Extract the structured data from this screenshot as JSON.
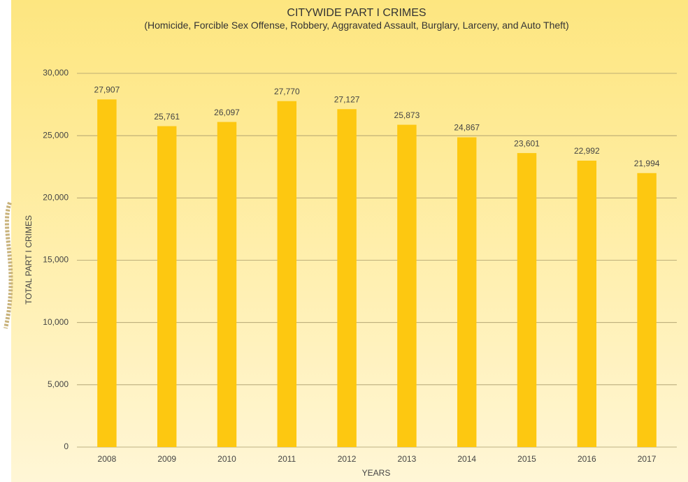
{
  "chart_data": {
    "type": "bar",
    "title": "CITYWIDE PART I CRIMES",
    "subtitle": "(Homicide, Forcible Sex Offense, Robbery, Aggravated Assault, Burglary, Larceny, and Auto Theft)",
    "x_label": "YEARS",
    "y_label": "TOTAL PART I CRIMES",
    "categories": [
      "2008",
      "2009",
      "2010",
      "2011",
      "2012",
      "2013",
      "2014",
      "2015",
      "2016",
      "2017"
    ],
    "values": [
      27907,
      25761,
      26097,
      27770,
      27127,
      25873,
      24867,
      23601,
      22992,
      21994
    ],
    "value_labels": [
      "27,907",
      "25,761",
      "26,097",
      "27,770",
      "27,127",
      "25,873",
      "24,867",
      "23,601",
      "22,992",
      "21,994"
    ],
    "color": "#fdc811",
    "ylim": [
      0,
      30000
    ],
    "yticks": [
      0,
      {
        "value": 5000,
        "label": "5,000"
      },
      {
        "value": 10000,
        "label": "10,000"
      },
      {
        "value": 15000,
        "label": "15,000"
      },
      {
        "value": 20000,
        "label": "20,000"
      },
      {
        "value": 25000,
        "label": "25,000"
      },
      {
        "value": 30000,
        "label": "30,000"
      }
    ],
    "grid": true
  }
}
